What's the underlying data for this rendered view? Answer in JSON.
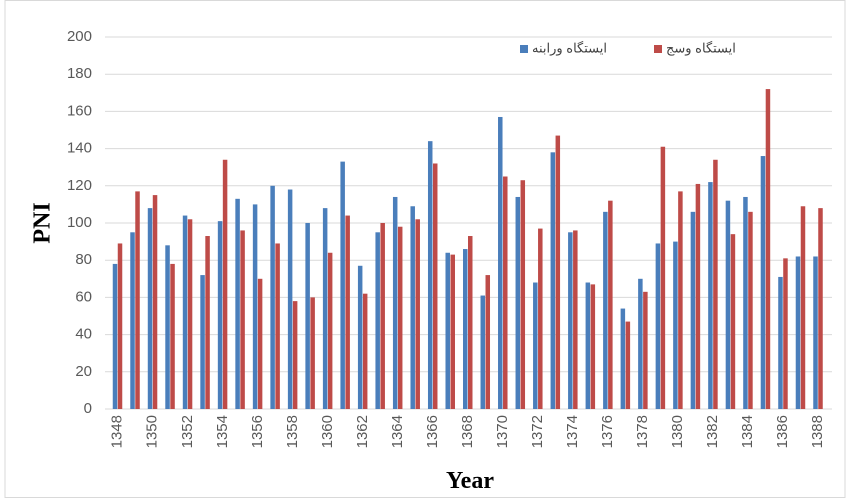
{
  "chart_data": {
    "type": "bar",
    "categories": [
      "1348",
      null,
      "1350",
      null,
      "1352",
      null,
      "1354",
      null,
      "1356",
      null,
      "1358",
      null,
      "1360",
      null,
      "1362",
      null,
      "1364",
      null,
      "1366",
      null,
      "1368",
      null,
      "1370",
      null,
      "1372",
      null,
      "1374",
      null,
      "1376",
      null,
      "1378",
      null,
      "1380",
      null,
      "1382",
      null,
      "1384",
      null,
      "1386",
      null,
      "1388"
    ],
    "series": [
      {
        "name": "ایستگاه ورابنه",
        "color": "#4a7ebb",
        "values": [
          78,
          95,
          108,
          88,
          104,
          72,
          101,
          113,
          110,
          120,
          118,
          100,
          108,
          133,
          77,
          95,
          114,
          109,
          144,
          84,
          86,
          61,
          157,
          114,
          68,
          138,
          95,
          68,
          106,
          54,
          70,
          89,
          90,
          106,
          122,
          112,
          114,
          136,
          71,
          82,
          82
        ]
      },
      {
        "name": "ایستگاه وسج",
        "color": "#be4b48",
        "values": [
          89,
          117,
          115,
          78,
          102,
          93,
          134,
          96,
          70,
          89,
          58,
          60,
          84,
          104,
          62,
          100,
          98,
          102,
          132,
          83,
          93,
          72,
          125,
          123,
          97,
          147,
          96,
          67,
          112,
          47,
          63,
          141,
          117,
          121,
          134,
          94,
          106,
          172,
          81,
          109,
          108
        ]
      }
    ],
    "x_label": "Year",
    "y_label": "PNI",
    "ylim": [
      0,
      200
    ],
    "yticks": [
      0,
      20,
      40,
      60,
      80,
      100,
      120,
      140,
      160,
      180,
      200
    ],
    "grid": true,
    "legend": "top-right"
  }
}
